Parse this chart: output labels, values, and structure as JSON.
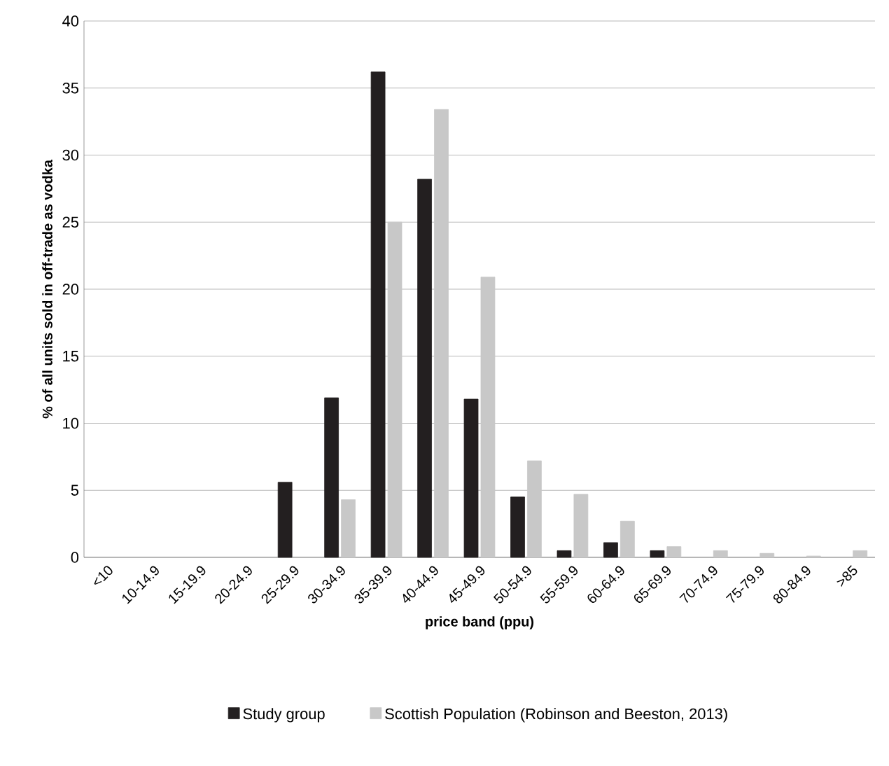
{
  "chart_data": {
    "type": "bar",
    "xlabel": "price band (ppu)",
    "ylabel": "% of all units sold in off-trade as vodka",
    "categories": [
      "<10",
      "10-14.9",
      "15-19.9",
      "20-24.9",
      "25-29.9",
      "30-34.9",
      "35-39.9",
      "40-44.9",
      "45-49.9",
      "50-54.9",
      "55-59.9",
      "60-64.9",
      "65-69.9",
      "70-74.9",
      "75-79.9",
      "80-84.9",
      ">85"
    ],
    "series": [
      {
        "name": "Study group",
        "color": "#231f20",
        "values": [
          0,
          0,
          0,
          0,
          5.6,
          11.9,
          36.2,
          28.2,
          11.8,
          4.5,
          0.5,
          1.1,
          0.5,
          0,
          0,
          0,
          0
        ]
      },
      {
        "name": "Scottish Population (Robinson and Beeston, 2013)",
        "color": "#c8c8c8",
        "values": [
          0,
          0,
          0,
          0,
          0,
          4.3,
          25,
          33.4,
          20.9,
          7.2,
          4.7,
          2.7,
          0.8,
          0.5,
          0.3,
          0.1,
          0.5
        ]
      }
    ],
    "ylim": [
      0,
      40
    ],
    "yticks": [
      0,
      5,
      10,
      15,
      20,
      25,
      30,
      35,
      40
    ],
    "grid": "y",
    "legend": "bottom"
  }
}
